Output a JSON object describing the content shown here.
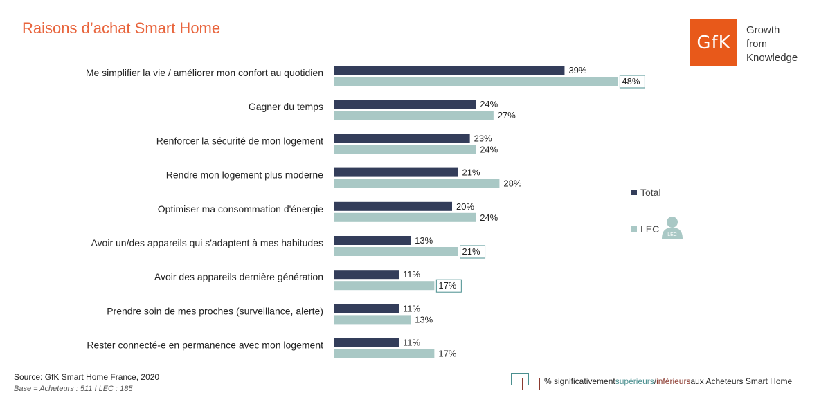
{
  "title": "Raisons d’achat Smart Home",
  "logo": {
    "mark": "GfK",
    "tagline": [
      "Growth",
      "from",
      "Knowledge"
    ]
  },
  "legend": {
    "total": "Total",
    "lec": "LEC",
    "lec_icon_text": "LEC"
  },
  "colors": {
    "total": "#333d5a",
    "lec": "#a9c8c5",
    "sig_higher": "#4a8f8f",
    "sig_lower": "#8b3a2f",
    "title": "#e8643c"
  },
  "footer": {
    "source": "Source: GfK Smart Home France, 2020",
    "base": "Base = Acheteurs : 511 I LEC : 185",
    "sig_prefix": "% significativement ",
    "sig_higher": "supérieurs",
    "sig_sep": "/",
    "sig_lower": "inférieurs",
    "sig_suffix": " aux Acheteurs Smart Home"
  },
  "chart_data": {
    "type": "bar",
    "orientation": "horizontal",
    "categories": [
      "Me simplifier la vie / améliorer mon confort au quotidien",
      "Gagner du temps",
      "Renforcer la sécurité de mon logement",
      "Rendre mon logement plus moderne",
      "Optimiser ma consommation d'énergie",
      "Avoir un/des appareils qui s'adaptent à mes habitudes",
      "Avoir des appareils dernière génération",
      "Prendre soin de mes proches (surveillance, alerte)",
      "Rester connecté-e en permanence avec mon logement"
    ],
    "series": [
      {
        "name": "Total",
        "values": [
          39,
          24,
          23,
          21,
          20,
          13,
          11,
          11,
          11
        ]
      },
      {
        "name": "LEC",
        "values": [
          48,
          27,
          24,
          28,
          24,
          21,
          17,
          13,
          17
        ],
        "significant_higher": [
          true,
          false,
          false,
          false,
          false,
          true,
          true,
          false,
          false
        ]
      }
    ],
    "value_suffix": "%",
    "legend_position": "right"
  }
}
